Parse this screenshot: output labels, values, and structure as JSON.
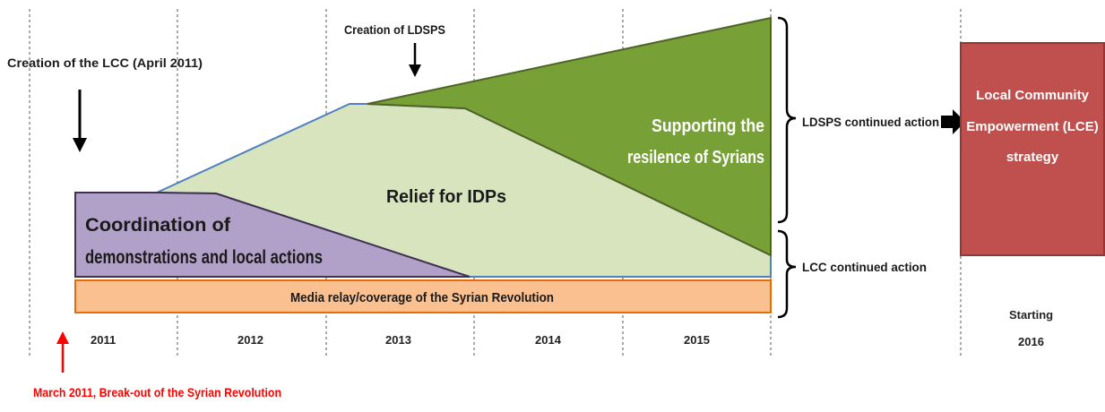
{
  "timeline": {
    "years": [
      "2011",
      "2012",
      "2013",
      "2014",
      "2015"
    ],
    "starting_label_line1": "Starting",
    "starting_label_line2": "2016"
  },
  "areas": {
    "coordination": {
      "line1": "Coordination of",
      "line2": "demonstrations and local actions",
      "color": "#b1a0c7"
    },
    "relief": {
      "label": "Relief for IDPs",
      "color": "#d7e4bd"
    },
    "resilience": {
      "line1": "Supporting the",
      "line2": "resilence of Syrians",
      "color": "#77a037"
    },
    "media": {
      "label": "Media relay/coverage of the Syrian Revolution",
      "color": "#fac090"
    }
  },
  "annotations": {
    "lcc_creation": "Creation of the LCC (April 2011)",
    "ldsps_creation": "Creation of LDSPS",
    "ldsps_continued": "LDSPS continued action",
    "lcc_continued": "LCC continued action",
    "breakout": "March 2011, Break-out of the Syrian Revolution",
    "breakout_color": "#ff0000"
  },
  "lce_box": {
    "line1": "Local Community",
    "line2": "Empowerment (LCE)",
    "line3": "strategy",
    "color": "#c0504d"
  }
}
